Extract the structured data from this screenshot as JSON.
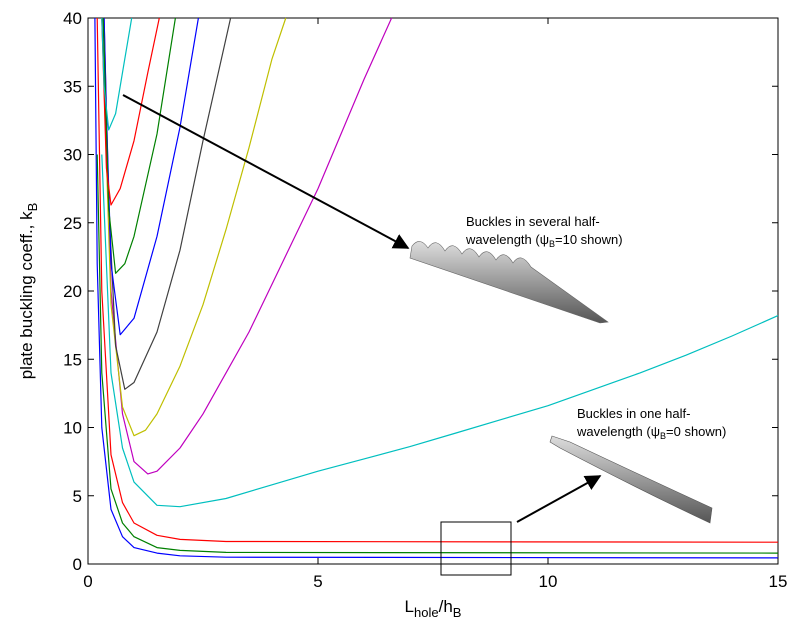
{
  "chart_data": {
    "type": "line",
    "xlabel": {
      "main": "L",
      "sub": "hole",
      "mid": "/h",
      "sub2": "B"
    },
    "ylabel": {
      "main": "plate buckling coeff., k",
      "sub": "B"
    },
    "xlim": [
      0,
      15
    ],
    "xticks": [
      0,
      5,
      10,
      15
    ],
    "ylim": [
      0,
      40
    ],
    "yticks": [
      0,
      5,
      10,
      15,
      20,
      25,
      30,
      35,
      40
    ],
    "series": [
      {
        "color": "#0000ff",
        "x": [
          0.15,
          0.2,
          0.3,
          0.5,
          0.75,
          1,
          1.5,
          2,
          3,
          15
        ],
        "values": [
          40,
          22,
          10,
          4,
          2,
          1.2,
          0.8,
          0.6,
          0.5,
          0.45
        ]
      },
      {
        "color": "#008000",
        "x": [
          0.2,
          0.3,
          0.5,
          0.75,
          1,
          1.5,
          2,
          3,
          15
        ],
        "values": [
          30,
          14,
          5.5,
          3,
          2,
          1.2,
          1,
          0.85,
          0.8
        ]
      },
      {
        "color": "#ff0000",
        "x": [
          0.2,
          0.3,
          0.5,
          0.75,
          1,
          1.5,
          2,
          3,
          15
        ],
        "values": [
          40,
          20,
          8,
          4.5,
          3,
          2.1,
          1.8,
          1.65,
          1.6
        ]
      },
      {
        "color": "#00bfbf",
        "x": [
          0.3,
          0.5,
          0.75,
          1,
          1.5,
          2,
          3,
          4,
          5,
          6,
          7,
          8,
          9,
          10,
          11,
          12,
          13,
          14,
          15
        ],
        "values": [
          30,
          14,
          8.5,
          6,
          4.3,
          4.2,
          4.8,
          5.8,
          6.8,
          7.7,
          8.6,
          9.6,
          10.6,
          11.6,
          12.8,
          14,
          15.3,
          16.7,
          18.2
        ]
      },
      {
        "color": "#bf00bf",
        "x": [
          0.35,
          0.5,
          0.75,
          1,
          1.3,
          1.5,
          2,
          2.5,
          3,
          3.5,
          4,
          4.5,
          5,
          5.5,
          6,
          6.6
        ],
        "values": [
          40,
          20,
          11,
          7.5,
          6.6,
          6.8,
          8.5,
          11,
          14,
          17,
          20.5,
          24,
          27.5,
          31.5,
          35.5,
          40
        ]
      },
      {
        "color": "#bfbf00",
        "x": [
          0.35,
          0.5,
          0.75,
          1,
          1.25,
          1.5,
          2,
          2.5,
          3,
          3.5,
          4,
          4.3
        ],
        "values": [
          35,
          19,
          11.5,
          9.4,
          9.8,
          11,
          14.5,
          19,
          24.5,
          30.5,
          37,
          40
        ]
      },
      {
        "color": "#404040",
        "x": [
          0.33,
          0.4,
          0.6,
          0.8,
          1,
          1.5,
          2,
          2.5,
          3,
          3.1
        ],
        "values": [
          40,
          30,
          16,
          12.8,
          13.3,
          17,
          23,
          31,
          38.5,
          40
        ]
      },
      {
        "color": "#0000ff",
        "x": [
          0.35,
          0.4,
          0.5,
          0.7,
          1,
          1.5,
          2,
          2.4
        ],
        "values": [
          40,
          33,
          22,
          16.8,
          18,
          24,
          32,
          40
        ]
      },
      {
        "color": "#008000",
        "x": [
          0.33,
          0.35,
          0.45,
          0.6,
          0.8,
          1,
          1.5,
          1.9
        ],
        "values": [
          40,
          38,
          26,
          21.3,
          22,
          24,
          31.5,
          40
        ]
      },
      {
        "color": "#ff0000",
        "x": [
          0.3,
          0.4,
          0.5,
          0.7,
          1,
          1.3,
          1.55
        ],
        "values": [
          40,
          29,
          26.3,
          27.5,
          31,
          36,
          40
        ]
      },
      {
        "color": "#00bfbf",
        "x": [
          0.3,
          0.35,
          0.45,
          0.6,
          0.8,
          0.95
        ],
        "values": [
          40,
          35,
          31.8,
          33,
          37,
          40
        ]
      }
    ],
    "annotations": [
      {
        "line1": "Buckles in several half-",
        "pre": "wavelength (",
        "psi": "ψ",
        "sub": "B",
        "post": "=10 shown)"
      },
      {
        "line1": "Buckles in one half-",
        "pre": "wavelength (",
        "psi": "ψ",
        "sub": "B",
        "post": "=0 shown)"
      }
    ]
  }
}
